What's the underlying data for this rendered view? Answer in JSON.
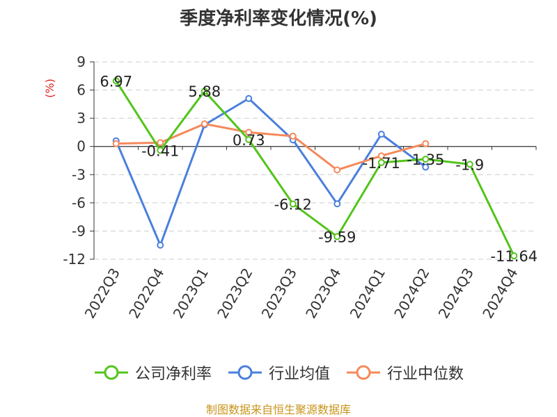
{
  "chart_data": {
    "type": "line",
    "title": "季度净利率变化情况(%)",
    "ylabel": "(%)",
    "xlabel": "",
    "categories": [
      "2022Q3",
      "2022Q4",
      "2023Q1",
      "2023Q2",
      "2023Q3",
      "2023Q4",
      "2024Q1",
      "2024Q2",
      "2024Q3",
      "2024Q4"
    ],
    "ylim": [
      -12,
      9
    ],
    "yticks": [
      9,
      6,
      3,
      0,
      -3,
      -6,
      -9,
      -12
    ],
    "grid": true,
    "legend_position": "bottom",
    "series": [
      {
        "name": "公司净利率",
        "color": "#52c41a",
        "values": [
          6.97,
          -0.41,
          5.88,
          0.73,
          -6.12,
          -9.59,
          -1.71,
          -1.35,
          -1.9,
          -11.64
        ],
        "data_labels": [
          "6.97",
          "-0.41",
          "5.88",
          "0.73",
          "-6.12",
          "-9.59",
          "-1.71",
          "-1.35",
          "-1.9",
          "-11.64"
        ]
      },
      {
        "name": "行业均值",
        "color": "#4a7fdc",
        "values": [
          0.6,
          -10.5,
          2.3,
          5.1,
          0.7,
          -6.1,
          1.3,
          -2.2,
          null,
          null
        ]
      },
      {
        "name": "行业中位数",
        "color": "#f5895a",
        "values": [
          0.3,
          0.4,
          2.4,
          1.5,
          1.1,
          -2.5,
          -1.0,
          0.3,
          null,
          null
        ]
      }
    ]
  },
  "source_note": "制图数据来自恒生聚源数据库"
}
